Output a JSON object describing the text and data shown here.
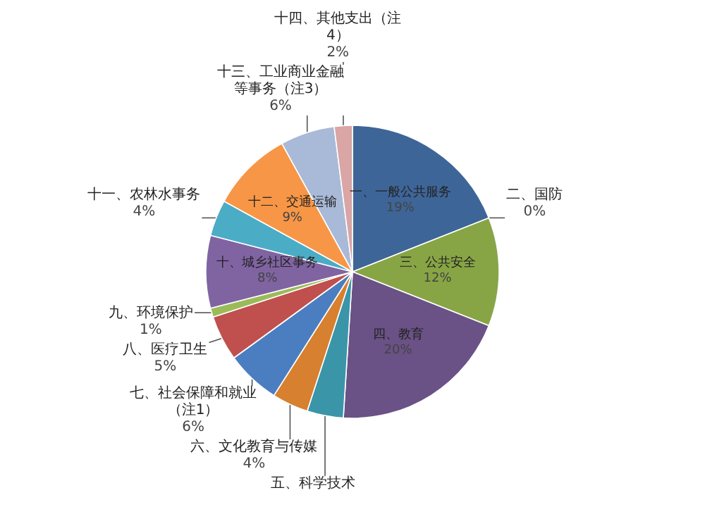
{
  "chart_data": {
    "type": "pie",
    "categories": [
      "一、一般公共服务",
      "二、国防",
      "三、公共安全",
      "四、教育",
      "五、科学技术",
      "六、文化教育与传媒",
      "七、社会保障和就业（注1）",
      "八、医疗卫生",
      "九、环境保护",
      "十、城乡社区事务",
      "十一、农林水事务",
      "十二、交通运输",
      "十三、工业商业金融等事务（注3）",
      "十四、其他支出（注4）"
    ],
    "values": [
      19,
      0,
      12,
      20,
      4,
      4,
      6,
      5,
      1,
      8,
      4,
      9,
      6,
      2
    ],
    "value_labels": [
      "19%",
      "0%",
      "12%",
      "20%",
      null,
      "4%",
      "6%",
      "5%",
      "1%",
      "8%",
      "4%",
      "9%",
      "6%",
      "2%"
    ],
    "colors": [
      "#3e6597",
      "#c0504d",
      "#88a545",
      "#6a5186",
      "#3b95a9",
      "#d7802f",
      "#4a7ec0",
      "#c0504d",
      "#9bbb59",
      "#8064a2",
      "#4bacc6",
      "#f79646",
      "#a9b9d8",
      "#d9a5a5"
    ]
  }
}
